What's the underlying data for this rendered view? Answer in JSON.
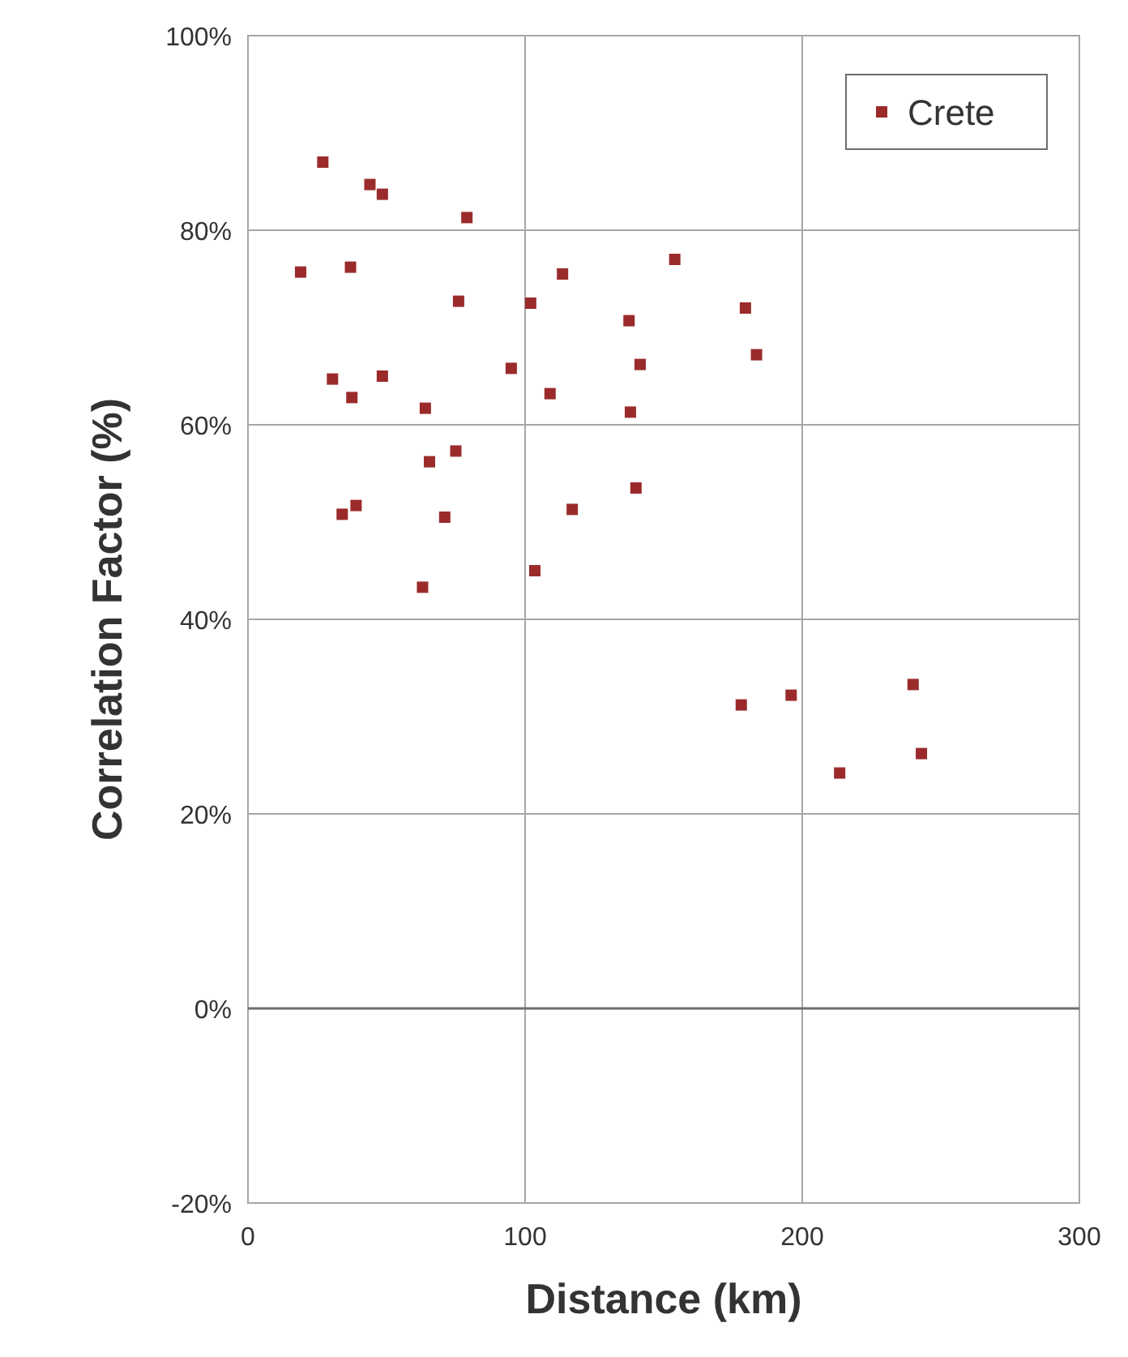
{
  "chart_data": {
    "type": "scatter",
    "xlabel": "Distance (km)",
    "ylabel": "Correlation Factor (%)",
    "xlim": [
      0,
      300
    ],
    "xticks": [
      0,
      100,
      200,
      300
    ],
    "ylim": [
      -20,
      100
    ],
    "yticks": [
      {
        "value": -20,
        "label": "-20%"
      },
      {
        "value": 0,
        "label": "0%"
      },
      {
        "value": 20,
        "label": "20%"
      },
      {
        "value": 40,
        "label": "40%"
      },
      {
        "value": 60,
        "label": "60%"
      },
      {
        "value": 80,
        "label": "80%"
      },
      {
        "value": 100,
        "label": "100%"
      }
    ],
    "grid": true,
    "legend": "top right",
    "marker": "square",
    "series": [
      {
        "name": "Crete",
        "color": "#9b2b2b",
        "x": [
          27,
          44,
          48.5,
          79,
          19,
          37,
          76,
          102,
          113.5,
          154,
          179.5,
          137.5,
          183.5,
          141.5,
          95,
          30.5,
          48.5,
          37.5,
          64,
          109,
          138,
          65.5,
          75,
          140,
          117,
          34,
          39,
          71,
          103.5,
          63,
          178,
          196,
          213.5,
          240,
          243
        ],
        "values": [
          87,
          84.7,
          83.7,
          81.3,
          75.7,
          76.2,
          72.7,
          72.5,
          75.5,
          77,
          72,
          70.7,
          67.2,
          66.2,
          65.8,
          64.7,
          65,
          62.8,
          61.7,
          63.2,
          61.3,
          56.2,
          57.3,
          53.5,
          51.3,
          50.8,
          51.7,
          50.5,
          45,
          43.3,
          31.2,
          32.2,
          24.2,
          33.3,
          26.2
        ]
      }
    ]
  }
}
